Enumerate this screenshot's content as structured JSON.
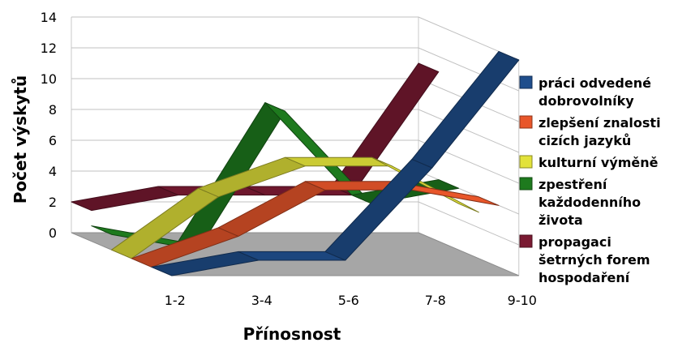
{
  "chart_data": {
    "type": "line",
    "three_d": true,
    "xlabel": "Přínosnost",
    "ylabel": "Počet výskytů",
    "categories": [
      "1-2",
      "3-4",
      "5-6",
      "7-8",
      "9-10"
    ],
    "ylim": [
      0,
      14
    ],
    "y_ticks": [
      "0",
      "2",
      "4",
      "6",
      "8",
      "10",
      "12",
      "14"
    ],
    "grid": true,
    "legend_position": "right",
    "series": [
      {
        "name": "práci odvedené dobrovolníky",
        "values": [
          0,
          1,
          1,
          7,
          14
        ],
        "color": "#1f4e8c",
        "legend_lines": [
          "práci odvedené",
          "dobrovolníky"
        ]
      },
      {
        "name": "zlepšení znalosti cizích jazyků",
        "values": [
          0,
          2,
          5,
          5,
          4
        ],
        "color": "#e8562a",
        "legend_lines": [
          "zlepšení znalosti",
          "cizích jazyků"
        ]
      },
      {
        "name": "kulturní výměně",
        "values": [
          0,
          4,
          6,
          6,
          3
        ],
        "color": "#e2e23a",
        "legend_lines": [
          "kulturní výměně"
        ]
      },
      {
        "name": "zpestření každodenního života",
        "values": [
          1,
          0,
          9,
          3,
          4
        ],
        "color": "#1e7a1e",
        "legend_lines": [
          "zpestření",
          "každodenního",
          "života"
        ]
      },
      {
        "name": "propagaci šetrných forem hospodaření",
        "values": [
          2,
          3,
          3,
          3,
          11
        ],
        "color": "#7a1a32",
        "legend_lines": [
          "propagaci",
          "šetrných forem",
          "hospodaření"
        ]
      }
    ]
  }
}
